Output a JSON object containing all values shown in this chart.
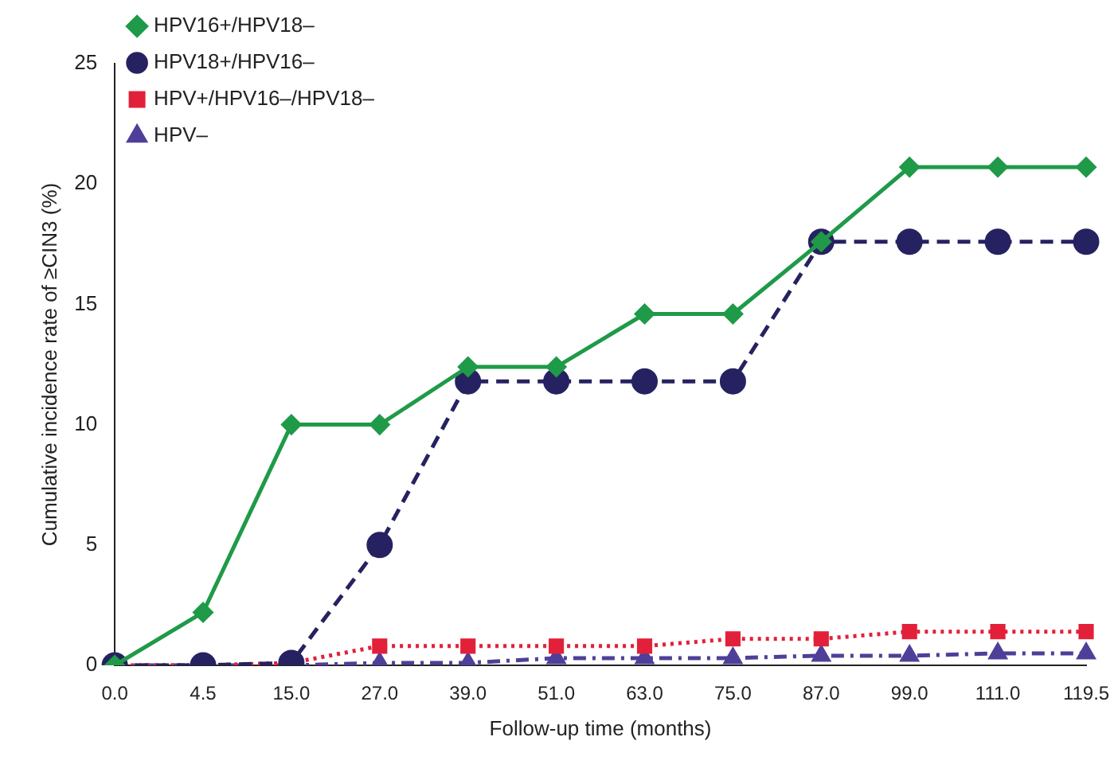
{
  "chart_data": {
    "type": "line",
    "xlabel": "Follow-up time (months)",
    "ylabel": "Cumulative incidence rate of ≥CIN3 (%)",
    "categories": [
      "0.0",
      "4.5",
      "15.0",
      "27.0",
      "39.0",
      "51.0",
      "63.0",
      "75.0",
      "87.0",
      "99.0",
      "111.0",
      "119.5"
    ],
    "series": [
      {
        "name": "HPV16+/HPV18–",
        "color": "#1f9a48",
        "marker": "diamond",
        "line_style": "solid",
        "values": [
          0,
          2.2,
          10,
          10,
          12.4,
          12.4,
          14.6,
          14.6,
          17.6,
          20.7,
          20.7,
          20.7
        ]
      },
      {
        "name": "HPV18+/HPV16–",
        "color": "#262261",
        "marker": "circle",
        "line_style": "dashed",
        "values": [
          0,
          0,
          0.1,
          5,
          11.8,
          11.8,
          11.8,
          11.8,
          17.6,
          17.6,
          17.6,
          17.6
        ]
      },
      {
        "name": "HPV+/HPV16–/HPV18–",
        "color": "#e2203a",
        "marker": "square",
        "line_style": "dotted",
        "values": [
          0,
          0,
          0.1,
          0.8,
          0.8,
          0.8,
          0.8,
          1.1,
          1.1,
          1.4,
          1.4,
          1.4
        ]
      },
      {
        "name": "HPV–",
        "color": "#4f3f99",
        "marker": "triangle",
        "line_style": "dashdot",
        "values": [
          0,
          0,
          0,
          0.1,
          0.1,
          0.3,
          0.3,
          0.3,
          0.4,
          0.4,
          0.5,
          0.5
        ]
      }
    ],
    "ylim": [
      0,
      25
    ],
    "yticks": [
      0,
      5,
      10,
      15,
      20,
      25
    ],
    "grid": false,
    "legend": "top left"
  }
}
